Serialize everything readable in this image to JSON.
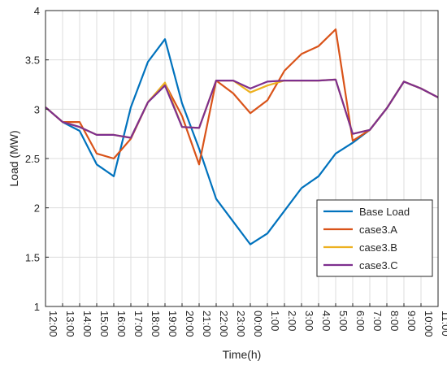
{
  "chart_data": {
    "type": "line",
    "title": "",
    "xlabel": "Time(h)",
    "ylabel": "Load (MW)",
    "ylim": [
      1,
      4
    ],
    "yticks": [
      1,
      1.5,
      2,
      2.5,
      3,
      3.5,
      4
    ],
    "ytick_labels": [
      "1",
      "1.5",
      "2",
      "2.5",
      "3",
      "3.5",
      "4"
    ],
    "categories": [
      "12:00",
      "13:00",
      "14:00",
      "15:00",
      "16:00",
      "17:00",
      "18:00",
      "19:00",
      "20:00",
      "21:00",
      "22:00",
      "23:00",
      "00:00",
      "1:00",
      "2:00",
      "3:00",
      "4:00",
      "5:00",
      "6:00",
      "7:00",
      "8:00",
      "9:00",
      "10:00",
      "11:00"
    ],
    "grid": true,
    "legend_position": "bottom-right",
    "series": [
      {
        "name": "Base Load",
        "color": "#0072BD",
        "values": [
          3.02,
          2.87,
          2.78,
          2.44,
          2.32,
          3.02,
          3.48,
          3.71,
          3.06,
          2.6,
          2.09,
          1.86,
          1.63,
          1.74,
          1.97,
          2.2,
          2.32,
          2.55,
          2.66,
          2.79,
          3.01,
          3.28,
          3.21,
          3.12
        ]
      },
      {
        "name": "case3.A",
        "color": "#D95319",
        "values": [
          3.02,
          2.87,
          2.87,
          2.55,
          2.5,
          2.7,
          3.07,
          3.26,
          2.93,
          2.44,
          3.29,
          3.16,
          2.96,
          3.09,
          3.39,
          3.56,
          3.64,
          3.81,
          2.68,
          2.79,
          3.01,
          3.28,
          3.21,
          3.12
        ]
      },
      {
        "name": "case3.B",
        "color": "#EDB120",
        "values": [
          3.02,
          2.87,
          2.82,
          2.74,
          2.74,
          2.71,
          3.07,
          3.27,
          2.82,
          2.81,
          3.29,
          3.29,
          3.17,
          3.24,
          3.29,
          3.29,
          3.29,
          3.3,
          2.75,
          2.79,
          3.01,
          3.28,
          3.21,
          3.12
        ]
      },
      {
        "name": "case3.C",
        "color": "#7E2F8E",
        "values": [
          3.02,
          2.87,
          2.82,
          2.74,
          2.74,
          2.71,
          3.07,
          3.24,
          2.82,
          2.81,
          3.29,
          3.29,
          3.21,
          3.28,
          3.29,
          3.29,
          3.29,
          3.3,
          2.75,
          2.79,
          3.01,
          3.28,
          3.21,
          3.12
        ]
      }
    ]
  }
}
